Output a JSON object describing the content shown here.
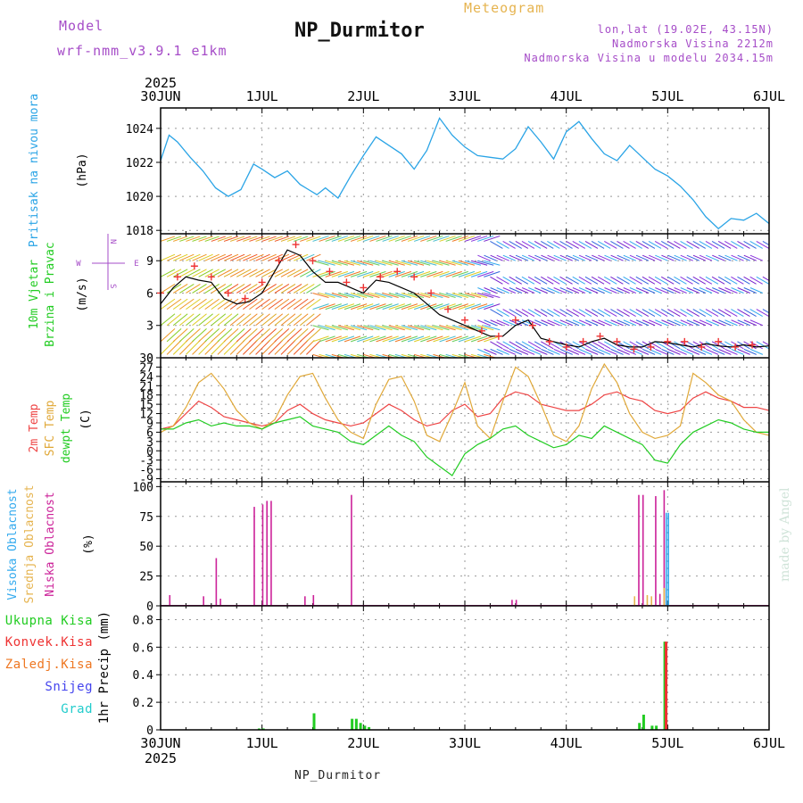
{
  "header": {
    "model_label": "Model",
    "model_name": "wrf-nmm_v3.9.1  e1km",
    "station": "NP_Durmitor",
    "title": "Meteogram",
    "lonlat": "lon,lat (19.02E, 43.15N)",
    "altitude": "Nadmorska Visina 2212m",
    "model_altitude": "Nadmorska Visina u modelu 2034.15m"
  },
  "footer": {
    "station": "NP_Durmitor",
    "credit": "made by Angel"
  },
  "time_axis": {
    "year": "2025",
    "labels": [
      "30JUN",
      "1JUL",
      "2JUL",
      "3JUL",
      "4JUL",
      "5JUL",
      "6JUL"
    ],
    "hours": 144
  },
  "colors": {
    "pressure": "#2aa4e6",
    "t2m": "#ee4444",
    "tsfc": "#e0a838",
    "dewpt": "#22cc22",
    "cloud_high": "#33aaee",
    "cloud_mid": "#e6b450",
    "cloud_low": "#cc2299",
    "precip_total": "#22cc22",
    "precip_conv": "#ee3333",
    "precip_snow": "#4444ee"
  },
  "chart_data": [
    {
      "type": "line",
      "id": "pressure",
      "ylabel_left": "Pritisak na nivou mora",
      "ylabel": "(hPa)",
      "ylim": [
        1017.8,
        1025.2
      ],
      "yticks": [
        1018,
        1020,
        1022,
        1024
      ],
      "grid": true,
      "series": [
        {
          "x": [
            0,
            2,
            4,
            7,
            10,
            13,
            16,
            19,
            22,
            24,
            27,
            30,
            33,
            35,
            37,
            39,
            42,
            45,
            48,
            51,
            54,
            57,
            60,
            63,
            66,
            69,
            72,
            75,
            78,
            81,
            84,
            87,
            90,
            93,
            96,
            99,
            102,
            105,
            108,
            111,
            114,
            117,
            120,
            123,
            126,
            129,
            132,
            135,
            138,
            141,
            144
          ],
          "values": [
            1022.1,
            1023.6,
            1023.2,
            1022.3,
            1021.5,
            1020.5,
            1020.0,
            1020.4,
            1021.9,
            1021.6,
            1021.1,
            1021.5,
            1020.7,
            1020.4,
            1020.1,
            1020.5,
            1019.9,
            1021.2,
            1022.4,
            1023.5,
            1023.0,
            1022.5,
            1021.6,
            1022.7,
            1024.6,
            1023.6,
            1022.9,
            1022.4,
            1022.3,
            1022.2,
            1022.8,
            1024.1,
            1023.2,
            1022.2,
            1023.8,
            1024.4,
            1023.4,
            1022.5,
            1022.1,
            1023.0,
            1022.3,
            1021.6,
            1021.2,
            1020.6,
            1019.8,
            1018.8,
            1018.1,
            1018.7,
            1018.6,
            1019.0,
            1018.4
          ]
        }
      ]
    },
    {
      "type": "line",
      "id": "wind",
      "ylabel_left": "10m Vjetar",
      "ylabel_left2": "Brzina i Pravac",
      "ylabel": "(m/s)",
      "ylim": [
        0,
        11.5
      ],
      "yticks": [
        0,
        3,
        6,
        9
      ],
      "compass": [
        "W",
        "E",
        "N",
        "S"
      ],
      "grid": true,
      "series": [
        {
          "name": "mean",
          "x": [
            0,
            3,
            6,
            9,
            12,
            15,
            18,
            21,
            24,
            27,
            30,
            33,
            36,
            39,
            42,
            45,
            48,
            51,
            54,
            57,
            60,
            63,
            66,
            69,
            72,
            75,
            78,
            81,
            84,
            87,
            90,
            93,
            96,
            99,
            102,
            105,
            108,
            111,
            114,
            117,
            120,
            123,
            126,
            129,
            132,
            135,
            138,
            141,
            144
          ],
          "values": [
            5.0,
            6.5,
            7.5,
            7.2,
            7.0,
            5.5,
            5.0,
            5.2,
            6.0,
            8.0,
            10.0,
            9.5,
            8.0,
            7.0,
            7.0,
            6.5,
            6.0,
            7.2,
            7.0,
            6.5,
            6.0,
            5.0,
            4.0,
            3.5,
            3.0,
            2.5,
            2.0,
            2.0,
            3.0,
            3.5,
            1.8,
            1.5,
            1.2,
            1.0,
            1.5,
            1.8,
            1.2,
            1.0,
            1.0,
            1.5,
            1.4,
            1.2,
            1.0,
            1.3,
            1.1,
            1.0,
            1.2,
            1.0,
            1.1
          ]
        },
        {
          "name": "gust",
          "x": [
            0,
            4,
            8,
            12,
            16,
            20,
            24,
            28,
            32,
            36,
            40,
            44,
            48,
            52,
            56,
            60,
            64,
            68,
            72,
            76,
            80,
            84,
            88,
            92,
            96,
            100,
            104,
            108,
            112,
            116,
            120,
            124,
            128,
            132,
            136,
            140
          ],
          "values": [
            6.0,
            7.5,
            8.5,
            7.5,
            6.0,
            5.5,
            7.0,
            9.0,
            10.5,
            9.0,
            8.0,
            7.0,
            6.5,
            7.5,
            8.0,
            7.5,
            6.0,
            4.5,
            3.5,
            2.5,
            2.0,
            3.5,
            3.0,
            1.5,
            1.0,
            1.5,
            2.0,
            1.5,
            0.8,
            1.0,
            1.5,
            1.5,
            1.0,
            1.5,
            1.0,
            1.2
          ]
        }
      ]
    },
    {
      "type": "line",
      "id": "temperature",
      "ylabel_left": "2m Temp",
      "ylabel_left2": "SFC Temp",
      "ylabel_left3": "dewpt Temp",
      "ylabel": "(C)",
      "ylim": [
        -10,
        30
      ],
      "yticks": [
        -9,
        -6,
        -3,
        0,
        3,
        6,
        9,
        12,
        15,
        18,
        21,
        24,
        27,
        30
      ],
      "grid": true,
      "series": [
        {
          "name": "2m Temp",
          "x": [
            0,
            3,
            6,
            9,
            12,
            15,
            18,
            21,
            24,
            27,
            30,
            33,
            36,
            39,
            42,
            45,
            48,
            51,
            54,
            57,
            60,
            63,
            66,
            69,
            72,
            75,
            78,
            81,
            84,
            87,
            90,
            93,
            96,
            99,
            102,
            105,
            108,
            111,
            114,
            117,
            120,
            123,
            126,
            129,
            132,
            135,
            138,
            141,
            144
          ],
          "values": [
            7,
            8,
            12,
            16,
            14,
            11,
            10,
            9,
            8,
            9,
            13,
            15,
            12,
            10,
            9,
            8,
            9,
            12,
            15,
            13,
            10,
            8,
            9,
            13,
            15,
            11,
            12,
            17,
            19,
            18,
            15,
            14,
            13,
            13,
            15,
            18,
            19,
            17,
            16,
            13,
            12,
            13,
            17,
            19,
            17,
            16,
            14,
            14,
            13
          ]
        },
        {
          "name": "SFC Temp",
          "x": [
            0,
            3,
            6,
            9,
            12,
            15,
            18,
            21,
            24,
            27,
            30,
            33,
            36,
            39,
            42,
            45,
            48,
            51,
            54,
            57,
            60,
            63,
            66,
            69,
            72,
            75,
            78,
            81,
            84,
            87,
            90,
            93,
            96,
            99,
            102,
            105,
            108,
            111,
            114,
            117,
            120,
            123,
            126,
            129,
            132,
            135,
            138,
            141,
            144
          ],
          "values": [
            6,
            8,
            14,
            22,
            25,
            20,
            13,
            9,
            7,
            10,
            18,
            24,
            25,
            17,
            10,
            6,
            4,
            15,
            23,
            24,
            16,
            5,
            3,
            12,
            22,
            8,
            4,
            16,
            27,
            24,
            15,
            5,
            3,
            8,
            20,
            28,
            22,
            12,
            6,
            4,
            5,
            8,
            25,
            22,
            18,
            16,
            10,
            6,
            5
          ]
        },
        {
          "name": "dewpt Temp",
          "x": [
            0,
            3,
            6,
            9,
            12,
            15,
            18,
            21,
            24,
            27,
            30,
            33,
            36,
            39,
            42,
            45,
            48,
            51,
            54,
            57,
            60,
            63,
            66,
            69,
            72,
            75,
            78,
            81,
            84,
            87,
            90,
            93,
            96,
            99,
            102,
            105,
            108,
            111,
            114,
            117,
            120,
            123,
            126,
            129,
            132,
            135,
            138,
            141,
            144
          ],
          "values": [
            7,
            7,
            9,
            10,
            8,
            9,
            8,
            8,
            7,
            9,
            10,
            11,
            8,
            7,
            6,
            3,
            2,
            5,
            8,
            5,
            3,
            -2,
            -5,
            -8,
            -1,
            2,
            4,
            7,
            8,
            5,
            3,
            1,
            2,
            5,
            4,
            8,
            6,
            4,
            2,
            -3,
            -4,
            2,
            6,
            8,
            10,
            9,
            7,
            6,
            6
          ]
        }
      ]
    },
    {
      "type": "bar",
      "id": "clouds",
      "ylabel_left": "Visoka Oblacnost",
      "ylabel_left2": "Srednja Oblacnost",
      "ylabel_left3": "Niska Oblacnost",
      "ylabel": "(%)",
      "ylim": [
        0,
        104
      ],
      "yticks": [
        0,
        25,
        50,
        75,
        100
      ],
      "grid": true,
      "series": [
        {
          "name": "low",
          "x": [
            2,
            10,
            13,
            14,
            22,
            24,
            25,
            26,
            34,
            36,
            45,
            83,
            84,
            113,
            114,
            117,
            118,
            119
          ],
          "values": [
            9,
            8,
            40,
            6,
            83,
            85,
            88,
            88,
            8,
            9,
            93,
            5,
            5,
            93,
            93,
            92,
            10,
            97
          ]
        },
        {
          "name": "mid",
          "x": [
            112,
            115,
            116,
            119
          ],
          "values": [
            8,
            9,
            8,
            15
          ]
        },
        {
          "name": "high",
          "x": [
            119.5,
            120
          ],
          "values": [
            78,
            78
          ]
        }
      ]
    },
    {
      "type": "bar",
      "id": "precip",
      "ylabel_left": "Ukupna Kisa",
      "ylabel_left2": "Konvek.Kisa",
      "ylabel_left3": "Zaledj.Kisa",
      "ylabel_left4": "Snijeg",
      "ylabel_left5": "Grad",
      "ylabel": "1hr Precip (mm)",
      "ylim": [
        0,
        0.9
      ],
      "yticks": [
        0,
        0.2,
        0.4,
        0.6,
        0.8
      ],
      "grid": true,
      "series": [
        {
          "name": "Ukupna Kisa",
          "x": [
            23,
            24,
            36,
            45,
            46,
            47,
            48,
            49,
            113,
            114,
            116,
            117,
            119
          ],
          "values": [
            0.01,
            0.01,
            0.12,
            0.08,
            0.08,
            0.05,
            0.03,
            0.02,
            0.05,
            0.11,
            0.03,
            0.03,
            0.64
          ]
        },
        {
          "name": "Konvek.Kisa",
          "x": [
            119.3
          ],
          "values": [
            0.64
          ]
        }
      ]
    }
  ]
}
